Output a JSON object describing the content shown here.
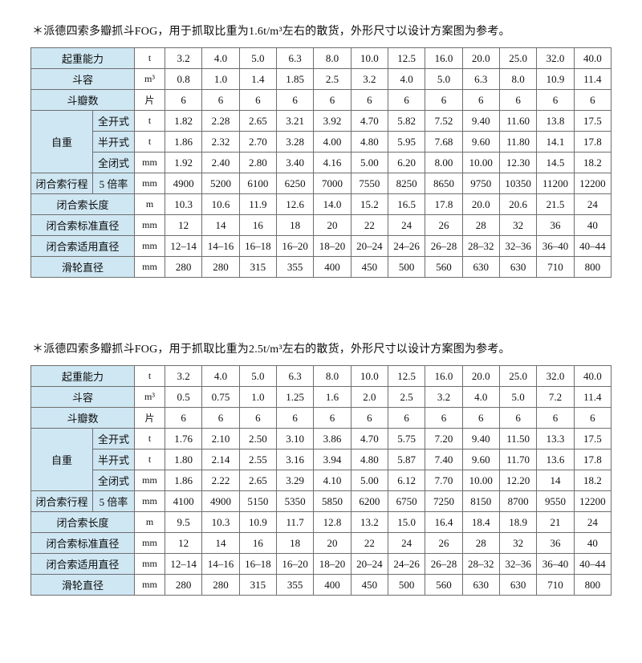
{
  "colors": {
    "page_background": "#ffffff",
    "header_cell_background": "#cfe7f3",
    "table_border": "#6e6e6e",
    "text": "#111111"
  },
  "tables": [
    {
      "title": "＊派德四索多瓣抓斗FOG，用于抓取比重为1.6t/m³左右的散货，外形尺寸以设计方案图为参考。",
      "rows": [
        {
          "label": "起重能力",
          "unit": "t",
          "values": [
            "3.2",
            "4.0",
            "5.0",
            "6.3",
            "8.0",
            "10.0",
            "12.5",
            "16.0",
            "20.0",
            "25.0",
            "32.0",
            "40.0"
          ]
        },
        {
          "label": "斗容",
          "unit": "m³",
          "values": [
            "0.8",
            "1.0",
            "1.4",
            "1.85",
            "2.5",
            "3.2",
            "4.0",
            "5.0",
            "6.3",
            "8.0",
            "10.9",
            "11.4"
          ]
        },
        {
          "label": "斗瓣数",
          "unit": "片",
          "values": [
            "6",
            "6",
            "6",
            "6",
            "6",
            "6",
            "6",
            "6",
            "6",
            "6",
            "6",
            "6"
          ]
        },
        {
          "group": "自重",
          "group_rowspan": 3,
          "sublabel": "全开式",
          "unit": "t",
          "values": [
            "1.82",
            "2.28",
            "2.65",
            "3.21",
            "3.92",
            "4.70",
            "5.82",
            "7.52",
            "9.40",
            "11.60",
            "13.8",
            "17.5"
          ]
        },
        {
          "sublabel": "半开式",
          "unit": "t",
          "values": [
            "1.86",
            "2.32",
            "2.70",
            "3.28",
            "4.00",
            "4.80",
            "5.95",
            "7.68",
            "9.60",
            "11.80",
            "14.1",
            "17.8"
          ]
        },
        {
          "sublabel": "全闭式",
          "unit": "mm",
          "values": [
            "1.92",
            "2.40",
            "2.80",
            "3.40",
            "4.16",
            "5.00",
            "6.20",
            "8.00",
            "10.00",
            "12.30",
            "14.5",
            "18.2"
          ]
        },
        {
          "label": "闭合索行程",
          "sublabel": "5 倍率",
          "unit": "mm",
          "values": [
            "4900",
            "5200",
            "6100",
            "6250",
            "7000",
            "7550",
            "8250",
            "8650",
            "9750",
            "10350",
            "11200",
            "12200"
          ]
        },
        {
          "label": "闭合索长度",
          "unit": "m",
          "values": [
            "10.3",
            "10.6",
            "11.9",
            "12.6",
            "14.0",
            "15.2",
            "16.5",
            "17.8",
            "20.0",
            "20.6",
            "21.5",
            "24"
          ]
        },
        {
          "label": "闭合索标准直径",
          "unit": "mm",
          "values": [
            "12",
            "14",
            "16",
            "18",
            "20",
            "22",
            "24",
            "26",
            "28",
            "32",
            "36",
            "40"
          ]
        },
        {
          "label": "闭合索适用直径",
          "unit": "mm",
          "values": [
            "12–14",
            "14–16",
            "16–18",
            "16–20",
            "18–20",
            "20–24",
            "24–26",
            "26–28",
            "28–32",
            "32–36",
            "36–40",
            "40–44"
          ]
        },
        {
          "label": "滑轮直径",
          "unit": "mm",
          "values": [
            "280",
            "280",
            "315",
            "355",
            "400",
            "450",
            "500",
            "560",
            "630",
            "630",
            "710",
            "800"
          ]
        }
      ]
    },
    {
      "title": "＊派德四索多瓣抓斗FOG，用于抓取比重为2.5t/m³左右的散货，外形尺寸以设计方案图为参考。",
      "rows": [
        {
          "label": "起重能力",
          "unit": "t",
          "values": [
            "3.2",
            "4.0",
            "5.0",
            "6.3",
            "8.0",
            "10.0",
            "12.5",
            "16.0",
            "20.0",
            "25.0",
            "32.0",
            "40.0"
          ]
        },
        {
          "label": "斗容",
          "unit": "m³",
          "values": [
            "0.5",
            "0.75",
            "1.0",
            "1.25",
            "1.6",
            "2.0",
            "2.5",
            "3.2",
            "4.0",
            "5.0",
            "7.2",
            "11.4"
          ]
        },
        {
          "label": "斗瓣数",
          "unit": "片",
          "values": [
            "6",
            "6",
            "6",
            "6",
            "6",
            "6",
            "6",
            "6",
            "6",
            "6",
            "6",
            "6"
          ]
        },
        {
          "group": "自重",
          "group_rowspan": 3,
          "sublabel": "全开式",
          "unit": "t",
          "values": [
            "1.76",
            "2.10",
            "2.50",
            "3.10",
            "3.86",
            "4.70",
            "5.75",
            "7.20",
            "9.40",
            "11.50",
            "13.3",
            "17.5"
          ]
        },
        {
          "sublabel": "半开式",
          "unit": "t",
          "values": [
            "1.80",
            "2.14",
            "2.55",
            "3.16",
            "3.94",
            "4.80",
            "5.87",
            "7.40",
            "9.60",
            "11.70",
            "13.6",
            "17.8"
          ]
        },
        {
          "sublabel": "全闭式",
          "unit": "mm",
          "values": [
            "1.86",
            "2.22",
            "2.65",
            "3.29",
            "4.10",
            "5.00",
            "6.12",
            "7.70",
            "10.00",
            "12.20",
            "14",
            "18.2"
          ]
        },
        {
          "label": "闭合索行程",
          "sublabel": "5 倍率",
          "unit": "mm",
          "values": [
            "4100",
            "4900",
            "5150",
            "5350",
            "5850",
            "6200",
            "6750",
            "7250",
            "8150",
            "8700",
            "9550",
            "12200"
          ]
        },
        {
          "label": "闭合索长度",
          "unit": "m",
          "values": [
            "9.5",
            "10.3",
            "10.9",
            "11.7",
            "12.8",
            "13.2",
            "15.0",
            "16.4",
            "18.4",
            "18.9",
            "21",
            "24"
          ]
        },
        {
          "label": "闭合索标准直径",
          "unit": "mm",
          "values": [
            "12",
            "14",
            "16",
            "18",
            "20",
            "22",
            "24",
            "26",
            "28",
            "32",
            "36",
            "40"
          ]
        },
        {
          "label": "闭合索适用直径",
          "unit": "mm",
          "values": [
            "12–14",
            "14–16",
            "16–18",
            "16–20",
            "18–20",
            "20–24",
            "24–26",
            "26–28",
            "28–32",
            "32–36",
            "36–40",
            "40–44"
          ]
        },
        {
          "label": "滑轮直径",
          "unit": "mm",
          "values": [
            "280",
            "280",
            "315",
            "355",
            "400",
            "450",
            "500",
            "560",
            "630",
            "630",
            "710",
            "800"
          ]
        }
      ]
    }
  ]
}
